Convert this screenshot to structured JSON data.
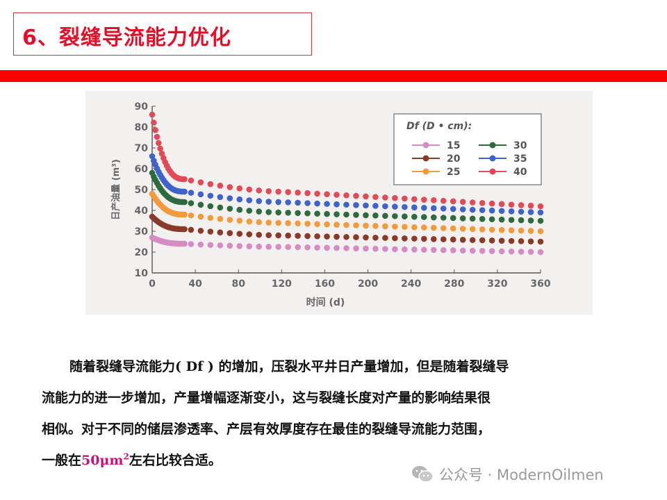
{
  "slide": {
    "title": "6、裂缝导流能力优化"
  },
  "body": {
    "line1": "随着裂缝导流能力( Df ) 的增加，压裂水平井日产量增加，但是随着裂缝导",
    "line2": "流能力的进一步增加，产量增幅逐渐变小，这与裂缝长度对产量的影响结果很",
    "line3": "相似。对于不同的储层渗透率、产层有效厚度存在最佳的裂缝导流能力范围，",
    "line4_prefix": "一般在",
    "line4_value": "50μm",
    "line4_sup": "2",
    "line4_suffix": "左右比较合适。"
  },
  "footer": {
    "text": "公众号 · ModernOilmen",
    "icon": "wechat-icon"
  },
  "colors": {
    "title_red": "#e0102a",
    "bar_red": "#ff0000",
    "highlight": "#c0157a"
  },
  "chart_data": {
    "type": "scatter",
    "xlabel": "时间 (d)",
    "ylabel": "日产油量 (m³)",
    "xlim": [
      0,
      360
    ],
    "ylim": [
      10,
      90
    ],
    "xticks": [
      "0",
      "40",
      "80",
      "120",
      "160",
      "200",
      "240",
      "280",
      "320",
      "360"
    ],
    "yticks": [
      "10",
      "20",
      "30",
      "40",
      "50",
      "60",
      "70",
      "80",
      "90"
    ],
    "legend_title": "Df (D • cm):",
    "legend_position": "top-right",
    "series": [
      {
        "name": "15",
        "color": "#d58cc4",
        "initial": 27,
        "early": 24,
        "plateau": 22.5,
        "final": 20
      },
      {
        "name": "20",
        "color": "#8b3a2a",
        "initial": 37,
        "early": 31,
        "plateau": 28,
        "final": 25
      },
      {
        "name": "25",
        "color": "#f29a3c",
        "initial": 48,
        "early": 38,
        "plateau": 34,
        "final": 30
      },
      {
        "name": "30",
        "color": "#2d6a3e",
        "initial": 58,
        "early": 44,
        "plateau": 39,
        "final": 35
      },
      {
        "name": "35",
        "color": "#3f63c8",
        "initial": 66,
        "early": 49,
        "plateau": 44,
        "final": 39
      },
      {
        "name": "40",
        "color": "#e14a57",
        "initial": 86,
        "early": 55,
        "plateau": 49,
        "final": 42
      }
    ]
  }
}
